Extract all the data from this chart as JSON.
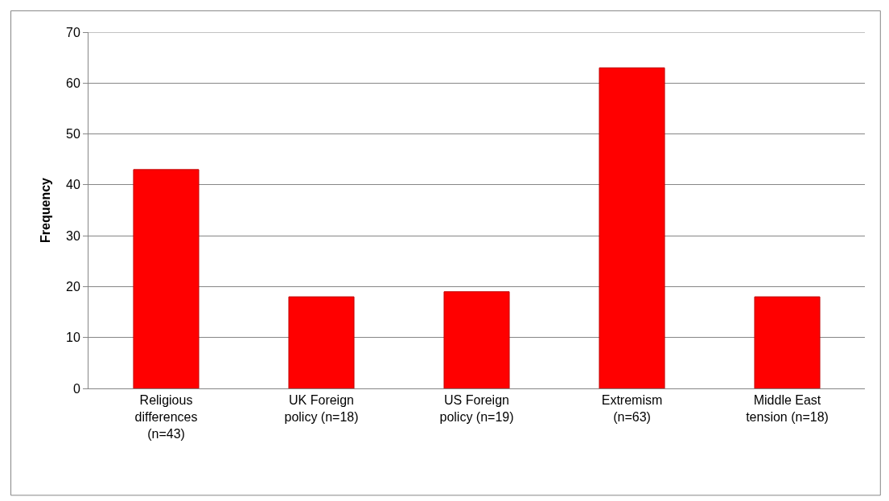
{
  "chart_data": {
    "type": "bar",
    "ylabel": "Frequency",
    "categories": [
      "Religious differences (n=43)",
      "UK Foreign policy (n=18)",
      "US Foreign policy (n=19)",
      "Extremism (n=63)",
      "Middle East tension (n=18)"
    ],
    "values": [
      43,
      18,
      19,
      63,
      18
    ],
    "color": "#ff0000",
    "ylim": [
      0,
      70
    ],
    "yticks": [
      0,
      10,
      20,
      30,
      40,
      50,
      60,
      70
    ],
    "grid": "y"
  }
}
